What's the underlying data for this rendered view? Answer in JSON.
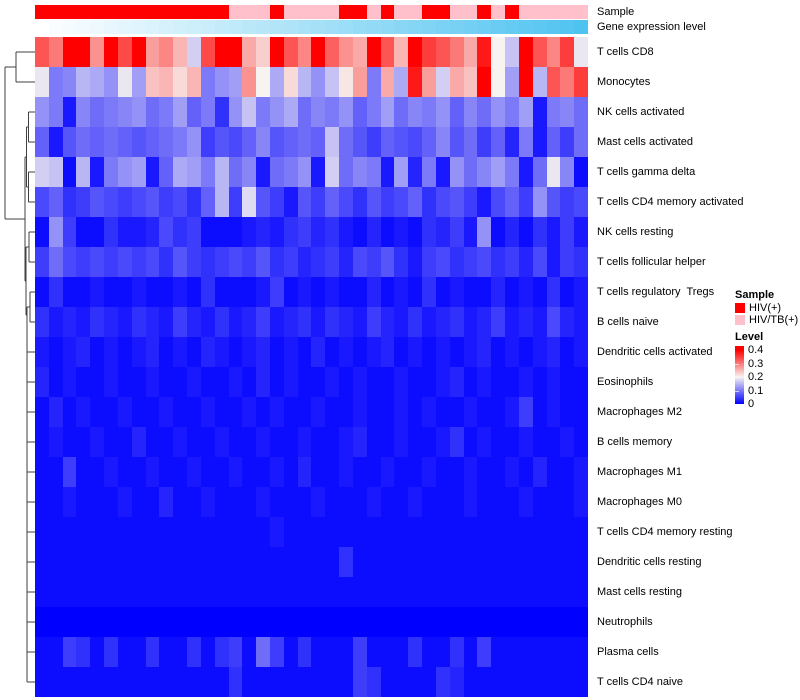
{
  "chart_data": {
    "type": "heatmap",
    "rows": [
      "T cells CD8",
      "Monocytes",
      "NK cells activated",
      "Mast cells activated",
      "T cells gamma delta",
      "T cells CD4 memory activated",
      "NK cells resting",
      "T cells follicular helper",
      "T cells regulatory  Tregs",
      "B cells naive",
      "Dendritic cells activated",
      "Eosinophils",
      "Macrophages M2",
      "B cells memory",
      "Macrophages M1",
      "Macrophages M0",
      "T cells CD4 memory resting",
      "Dendritic cells resting",
      "Mast cells resting",
      "Neutrophils",
      "Plasma cells",
      "T cells CD4 naive"
    ],
    "n_columns": 40,
    "value_scale": {
      "min": 0,
      "mid": 0.2,
      "max": 0.4,
      "low_color": "#0000FF",
      "mid_color": "#F7F3F0",
      "high_color": "#FF0000"
    },
    "row_dendrogram": true,
    "column_annotations": {
      "sample": {
        "label": "Sample",
        "groups": [
          "HIV(+)",
          "HIV/TB(+)"
        ],
        "group_colors": [
          "#FF0000",
          "#FFC0CB"
        ],
        "column_groups": [
          0,
          0,
          0,
          0,
          0,
          0,
          0,
          0,
          0,
          0,
          0,
          0,
          0,
          0,
          1,
          1,
          1,
          0,
          1,
          1,
          1,
          1,
          0,
          0,
          1,
          0,
          1,
          1,
          0,
          0,
          1,
          1,
          0,
          1,
          0,
          1,
          1,
          1,
          1,
          1
        ]
      },
      "gene_expression": {
        "label": "Gene expression level",
        "gradient_start": "#FFFFFF",
        "gradient_end": "#4FC3F0"
      }
    },
    "values": [
      [
        0.33,
        0.3,
        0.42,
        0.42,
        0.28,
        0.4,
        0.34,
        0.42,
        0.27,
        0.29,
        0.25,
        0.17,
        0.34,
        0.42,
        0.4,
        0.26,
        0.23,
        0.42,
        0.33,
        0.29,
        0.42,
        0.32,
        0.28,
        0.26,
        0.4,
        0.33,
        0.25,
        0.42,
        0.35,
        0.33,
        0.3,
        0.26,
        0.38,
        0.2,
        0.16,
        0.4,
        0.33,
        0.29,
        0.35,
        0.19
      ],
      [
        0.19,
        0.1,
        0.11,
        0.15,
        0.14,
        0.12,
        0.19,
        0.13,
        0.24,
        0.25,
        0.22,
        0.25,
        0.1,
        0.12,
        0.13,
        0.28,
        0.2,
        0.14,
        0.22,
        0.15,
        0.12,
        0.16,
        0.21,
        0.27,
        0.1,
        0.26,
        0.14,
        0.38,
        0.27,
        0.17,
        0.26,
        0.24,
        0.4,
        0.2,
        0.13,
        0.45,
        0.15,
        0.33,
        0.3,
        0.35
      ],
      [
        0.12,
        0.1,
        0.02,
        0.11,
        0.09,
        0.1,
        0.11,
        0.12,
        0.09,
        0.1,
        0.13,
        0.08,
        0.1,
        0.04,
        0.12,
        0.16,
        0.1,
        0.12,
        0.14,
        0.09,
        0.11,
        0.1,
        0.12,
        0.08,
        0.1,
        0.13,
        0.09,
        0.11,
        0.1,
        0.12,
        0.08,
        0.11,
        0.09,
        0.12,
        0.1,
        0.13,
        0.02,
        0.1,
        0.11,
        0.09
      ],
      [
        0.08,
        0.02,
        0.07,
        0.09,
        0.08,
        0.09,
        0.08,
        0.07,
        0.08,
        0.09,
        0.1,
        0.12,
        0.05,
        0.07,
        0.06,
        0.08,
        0.11,
        0.07,
        0.08,
        0.09,
        0.08,
        0.16,
        0.09,
        0.07,
        0.05,
        0.08,
        0.07,
        0.06,
        0.08,
        0.11,
        0.07,
        0.09,
        0.05,
        0.08,
        0.03,
        0.1,
        0.02,
        0.08,
        0.05,
        0.09
      ],
      [
        0.17,
        0.16,
        0.01,
        0.15,
        0.02,
        0.1,
        0.12,
        0.13,
        0.02,
        0.08,
        0.14,
        0.13,
        0.1,
        0.15,
        0.09,
        0.11,
        0.02,
        0.09,
        0.1,
        0.12,
        0.02,
        0.17,
        0.09,
        0.11,
        0.1,
        0.02,
        0.13,
        0.03,
        0.1,
        0.02,
        0.12,
        0.09,
        0.11,
        0.13,
        0.1,
        0.02,
        0.09,
        0.19,
        0.11,
        0.01
      ],
      [
        0.06,
        0.08,
        0.04,
        0.05,
        0.07,
        0.06,
        0.05,
        0.06,
        0.07,
        0.05,
        0.06,
        0.04,
        0.08,
        0.15,
        0.05,
        0.18,
        0.07,
        0.05,
        0.02,
        0.07,
        0.05,
        0.08,
        0.06,
        0.04,
        0.07,
        0.05,
        0.06,
        0.08,
        0.04,
        0.06,
        0.07,
        0.05,
        0.02,
        0.06,
        0.08,
        0.05,
        0.12,
        0.07,
        0.05,
        0.06
      ],
      [
        0.01,
        0.12,
        0.05,
        0.01,
        0.01,
        0.04,
        0.02,
        0.02,
        0.03,
        0.06,
        0.04,
        0.05,
        0.01,
        0.01,
        0.01,
        0.02,
        0.03,
        0.02,
        0.04,
        0.05,
        0.03,
        0.04,
        0.02,
        0.01,
        0.03,
        0.01,
        0.02,
        0.01,
        0.04,
        0.03,
        0.05,
        0.02,
        0.12,
        0.01,
        0.03,
        0.01,
        0.04,
        0.02,
        0.05,
        0.02
      ],
      [
        0.05,
        0.09,
        0.06,
        0.05,
        0.06,
        0.05,
        0.06,
        0.05,
        0.06,
        0.04,
        0.07,
        0.05,
        0.04,
        0.05,
        0.06,
        0.05,
        0.07,
        0.04,
        0.05,
        0.03,
        0.04,
        0.05,
        0.03,
        0.06,
        0.05,
        0.07,
        0.04,
        0.02,
        0.05,
        0.06,
        0.04,
        0.05,
        0.06,
        0.04,
        0.05,
        0.03,
        0.06,
        0.02,
        0.05,
        0.04
      ],
      [
        0.01,
        0.04,
        0.01,
        0.01,
        0.02,
        0.01,
        0.01,
        0.02,
        0.01,
        0.01,
        0.02,
        0.01,
        0.04,
        0.01,
        0.01,
        0.01,
        0.02,
        0.05,
        0.01,
        0.02,
        0.01,
        0.02,
        0.01,
        0.01,
        0.03,
        0.01,
        0.02,
        0.01,
        0.04,
        0.01,
        0.02,
        0.01,
        0.01,
        0.03,
        0.01,
        0.02,
        0.01,
        0.04,
        0.01,
        0.02
      ],
      [
        0.04,
        0.02,
        0.03,
        0.02,
        0.04,
        0.03,
        0.02,
        0.04,
        0.03,
        0.02,
        0.05,
        0.03,
        0.02,
        0.04,
        0.02,
        0.03,
        0.05,
        0.02,
        0.03,
        0.04,
        0.02,
        0.04,
        0.03,
        0.02,
        0.05,
        0.03,
        0.02,
        0.04,
        0.02,
        0.03,
        0.04,
        0.02,
        0.03,
        0.05,
        0.02,
        0.03,
        0.02,
        0.06,
        0.03,
        0.02
      ],
      [
        0.02,
        0.01,
        0.02,
        0.03,
        0.01,
        0.02,
        0.01,
        0.02,
        0.03,
        0.01,
        0.02,
        0.01,
        0.03,
        0.02,
        0.01,
        0.02,
        0.03,
        0.01,
        0.02,
        0.01,
        0.03,
        0.01,
        0.02,
        0.01,
        0.02,
        0.03,
        0.01,
        0.02,
        0.01,
        0.02,
        0.01,
        0.02,
        0.03,
        0.01,
        0.02,
        0.01,
        0.02,
        0.03,
        0.01,
        0.02
      ],
      [
        0.03,
        0.01,
        0.02,
        0.01,
        0.01,
        0.02,
        0.01,
        0.01,
        0.02,
        0.01,
        0.01,
        0.02,
        0.01,
        0.01,
        0.02,
        0.01,
        0.03,
        0.01,
        0.02,
        0.01,
        0.01,
        0.02,
        0.01,
        0.02,
        0.01,
        0.01,
        0.02,
        0.01,
        0.01,
        0.02,
        0.03,
        0.01,
        0.02,
        0.01,
        0.01,
        0.02,
        0.01,
        0.02,
        0.01,
        0.01
      ],
      [
        0.01,
        0.03,
        0.01,
        0.02,
        0.01,
        0.01,
        0.02,
        0.01,
        0.01,
        0.02,
        0.01,
        0.01,
        0.02,
        0.01,
        0.01,
        0.02,
        0.01,
        0.02,
        0.01,
        0.01,
        0.02,
        0.01,
        0.01,
        0.02,
        0.01,
        0.01,
        0.02,
        0.01,
        0.02,
        0.01,
        0.01,
        0.02,
        0.01,
        0.01,
        0.02,
        0.05,
        0.01,
        0.02,
        0.01,
        0.01
      ],
      [
        0.01,
        0.02,
        0.01,
        0.01,
        0.02,
        0.01,
        0.01,
        0.03,
        0.01,
        0.01,
        0.02,
        0.01,
        0.01,
        0.02,
        0.01,
        0.01,
        0.02,
        0.01,
        0.01,
        0.02,
        0.01,
        0.01,
        0.02,
        0.03,
        0.01,
        0.01,
        0.02,
        0.01,
        0.01,
        0.02,
        0.04,
        0.01,
        0.02,
        0.01,
        0.01,
        0.02,
        0.01,
        0.01,
        0.02,
        0.01
      ],
      [
        0.01,
        0.01,
        0.05,
        0.01,
        0.01,
        0.02,
        0.01,
        0.01,
        0.02,
        0.01,
        0.01,
        0.02,
        0.01,
        0.01,
        0.02,
        0.01,
        0.01,
        0.02,
        0.01,
        0.03,
        0.01,
        0.01,
        0.02,
        0.01,
        0.01,
        0.02,
        0.01,
        0.01,
        0.02,
        0.01,
        0.01,
        0.02,
        0.01,
        0.01,
        0.02,
        0.01,
        0.03,
        0.01,
        0.01,
        0.02
      ],
      [
        0.01,
        0.01,
        0.02,
        0.01,
        0.01,
        0.01,
        0.02,
        0.01,
        0.01,
        0.03,
        0.01,
        0.01,
        0.02,
        0.01,
        0.01,
        0.01,
        0.02,
        0.01,
        0.01,
        0.01,
        0.02,
        0.01,
        0.01,
        0.01,
        0.02,
        0.01,
        0.01,
        0.02,
        0.01,
        0.01,
        0.01,
        0.02,
        0.01,
        0.01,
        0.01,
        0.02,
        0.01,
        0.01,
        0.01,
        0.02
      ],
      [
        0.01,
        0.01,
        0.01,
        0.01,
        0.01,
        0.01,
        0.01,
        0.01,
        0.01,
        0.01,
        0.01,
        0.01,
        0.01,
        0.01,
        0.01,
        0.01,
        0.01,
        0.02,
        0.01,
        0.01,
        0.01,
        0.01,
        0.01,
        0.01,
        0.01,
        0.01,
        0.01,
        0.01,
        0.01,
        0.01,
        0.01,
        0.01,
        0.01,
        0.01,
        0.01,
        0.01,
        0.01,
        0.01,
        0.01,
        0.01
      ],
      [
        0.01,
        0.01,
        0.01,
        0.01,
        0.01,
        0.01,
        0.01,
        0.01,
        0.01,
        0.01,
        0.01,
        0.01,
        0.01,
        0.01,
        0.01,
        0.01,
        0.01,
        0.01,
        0.01,
        0.01,
        0.01,
        0.01,
        0.04,
        0.01,
        0.01,
        0.01,
        0.01,
        0.01,
        0.01,
        0.01,
        0.01,
        0.01,
        0.01,
        0.01,
        0.01,
        0.01,
        0.01,
        0.01,
        0.01,
        0.01
      ],
      [
        0.01,
        0.01,
        0.01,
        0.01,
        0.01,
        0.01,
        0.01,
        0.01,
        0.01,
        0.01,
        0.01,
        0.01,
        0.01,
        0.01,
        0.01,
        0.01,
        0.01,
        0.01,
        0.01,
        0.01,
        0.01,
        0.01,
        0.01,
        0.01,
        0.01,
        0.01,
        0.01,
        0.01,
        0.01,
        0.01,
        0.01,
        0.01,
        0.01,
        0.01,
        0.01,
        0.01,
        0.01,
        0.01,
        0.01,
        0.01
      ],
      [
        0,
        0,
        0,
        0,
        0,
        0,
        0,
        0,
        0,
        0,
        0,
        0,
        0,
        0,
        0,
        0,
        0,
        0,
        0,
        0,
        0,
        0,
        0,
        0,
        0,
        0,
        0,
        0,
        0,
        0,
        0,
        0,
        0,
        0,
        0,
        0,
        0,
        0,
        0,
        0
      ],
      [
        0.01,
        0.01,
        0.05,
        0.04,
        0.01,
        0.04,
        0.01,
        0.01,
        0.04,
        0.01,
        0.01,
        0.04,
        0.01,
        0.04,
        0.05,
        0.01,
        0.09,
        0.05,
        0.01,
        0.04,
        0.01,
        0.01,
        0.01,
        0.05,
        0.01,
        0.01,
        0.01,
        0.04,
        0.01,
        0.01,
        0.04,
        0.01,
        0.05,
        0.01,
        0.01,
        0.01,
        0.01,
        0.01,
        0.01,
        0.01
      ],
      [
        0.01,
        0.01,
        0.01,
        0.01,
        0.01,
        0.01,
        0.01,
        0.01,
        0.01,
        0.01,
        0.01,
        0.01,
        0.01,
        0.01,
        0.04,
        0.01,
        0.01,
        0.01,
        0.01,
        0.01,
        0.01,
        0.01,
        0.01,
        0.05,
        0.04,
        0.01,
        0.01,
        0.01,
        0.01,
        0.04,
        0.03,
        0.01,
        0.01,
        0.01,
        0.01,
        0.01,
        0.01,
        0.01,
        0.01,
        0.01
      ]
    ]
  },
  "legend": {
    "sample": {
      "title": "Sample",
      "items": [
        {
          "label": "HIV(+)",
          "color": "#FF0000"
        },
        {
          "label": "HIV/TB(+)",
          "color": "#FFC0CB"
        }
      ]
    },
    "level": {
      "title": "Level",
      "ticks": [
        "0.4",
        "0.3",
        "0.2",
        "0.1",
        "0"
      ],
      "tick_values": [
        0.4,
        0.3,
        0.2,
        0.1,
        0
      ]
    }
  }
}
